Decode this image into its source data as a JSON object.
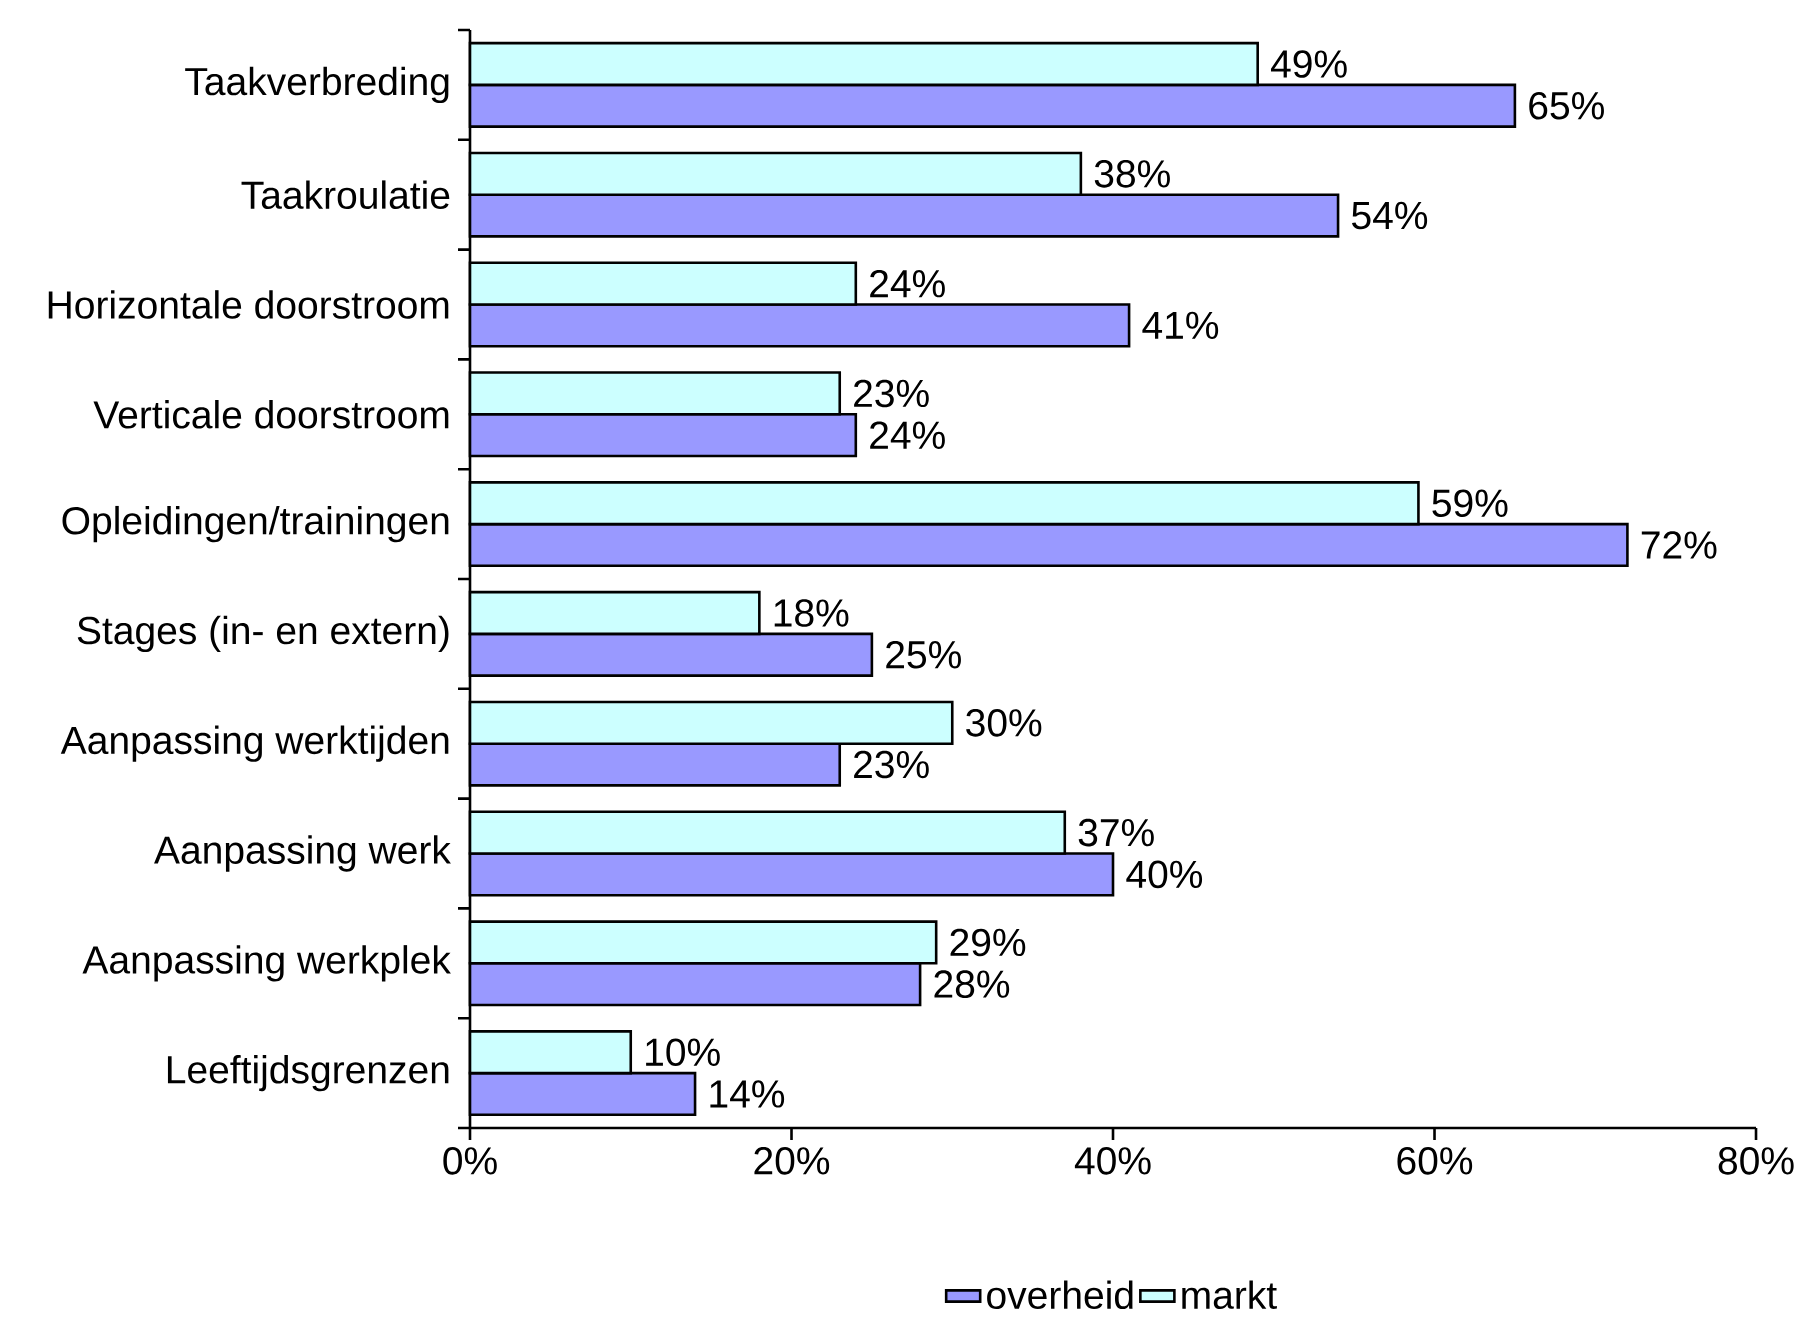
{
  "chart_data": {
    "type": "bar",
    "orientation": "horizontal",
    "categories": [
      "Taakverbreding",
      "Taakroulatie",
      "Horizontale doorstroom",
      "Verticale doorstroom",
      "Opleidingen/trainingen",
      "Stages (in- en extern)",
      "Aanpassing werktijden",
      "Aanpassing werk",
      "Aanpassing werkplek",
      "Leeftijdsgrenzen"
    ],
    "series": [
      {
        "name": "overheid",
        "color": "#9999ff",
        "values": [
          65,
          54,
          41,
          24,
          72,
          25,
          23,
          40,
          28,
          14
        ],
        "value_labels": [
          "65%",
          "54%",
          "41%",
          "24%",
          "72%",
          "25%",
          "23%",
          "40%",
          "28%",
          "14%"
        ]
      },
      {
        "name": "markt",
        "color": "#ccffff",
        "values": [
          49,
          38,
          24,
          23,
          59,
          18,
          30,
          37,
          29,
          10
        ],
        "value_labels": [
          "49%",
          "38%",
          "24%",
          "23%",
          "59%",
          "18%",
          "30%",
          "37%",
          "29%",
          "10%"
        ]
      }
    ],
    "xlim": [
      0,
      80
    ],
    "xticks": [
      {
        "value": 0,
        "label": "0%"
      },
      {
        "value": 20,
        "label": "20%"
      },
      {
        "value": 40,
        "label": "40%"
      },
      {
        "value": 60,
        "label": "60%"
      },
      {
        "value": 80,
        "label": "80%"
      }
    ],
    "legend": "bottom"
  }
}
